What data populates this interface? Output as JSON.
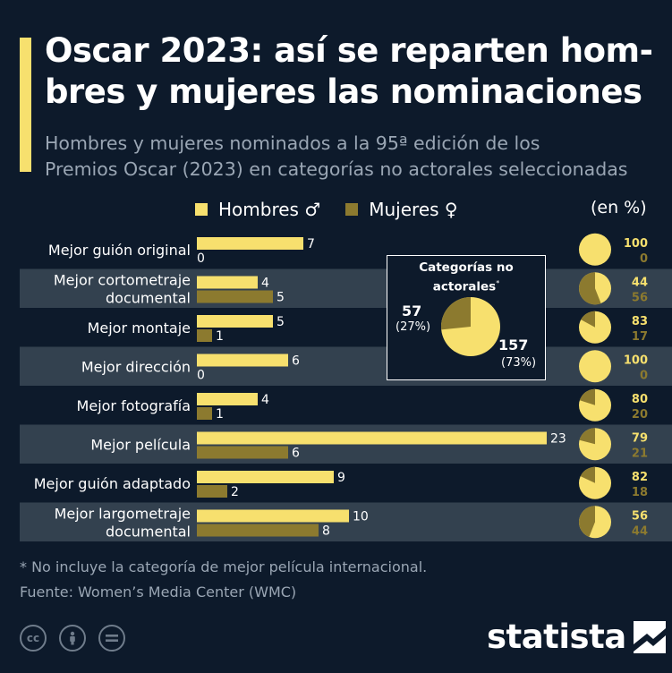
{
  "title": "Oscar 2023: así se reparten hom-bres y mujeres las nominaciones",
  "title_line1": "Oscar 2023: así se reparten hom-",
  "title_line2": "bres y mujeres las nominaciones",
  "subtitle_line1": "Hombres y mujeres nominados a la 95ª edición de los",
  "subtitle_line2": "Premios Oscar (2023) en categorías no actorales seleccionadas",
  "legend": {
    "men": "Hombres ♂",
    "women": "Mujeres ♀"
  },
  "unit_label": "(en %)",
  "colors": {
    "men": "#f7e06e",
    "women": "#8c7a2f",
    "background": "#0d1a2b",
    "row_band": "#33414f",
    "muted_text": "#9aa6b4"
  },
  "chart_data": [
    {
      "type": "bar",
      "orientation": "horizontal",
      "categories": [
        [
          "Mejor guión original"
        ],
        [
          "Mejor cortometraje",
          "documental"
        ],
        [
          "Mejor montaje"
        ],
        [
          "Mejor dirección"
        ],
        [
          "Mejor fotografía"
        ],
        [
          "Mejor película"
        ],
        [
          "Mejor guión adaptado"
        ],
        [
          "Mejor largometraje",
          "documental"
        ]
      ],
      "series": [
        {
          "name": "Hombres ♂",
          "values": [
            7,
            4,
            5,
            6,
            4,
            23,
            9,
            10
          ]
        },
        {
          "name": "Mujeres ♀",
          "values": [
            0,
            5,
            1,
            0,
            1,
            6,
            2,
            8
          ]
        }
      ],
      "percentages": {
        "men": [
          100,
          44,
          83,
          100,
          80,
          79,
          82,
          56
        ],
        "women": [
          0,
          56,
          17,
          0,
          20,
          21,
          18,
          44
        ]
      }
    },
    {
      "type": "pie",
      "title": "Categorías no actorales",
      "title_line1": "Categorías no",
      "title_line2": "actorales",
      "title_mark": "*",
      "slices": [
        {
          "name": "Hombres ♂",
          "value": 157,
          "percent_label": "(73%)"
        },
        {
          "name": "Mujeres ♀",
          "value": 57,
          "percent_label": "(27%)"
        }
      ]
    }
  ],
  "footnote": "* No incluye la categoría de mejor película internacional.",
  "source": "Fuente: Women’s Media Center (WMC)",
  "brand": "statista",
  "license_icons": [
    "cc-icon",
    "by-icon",
    "nd-icon"
  ]
}
